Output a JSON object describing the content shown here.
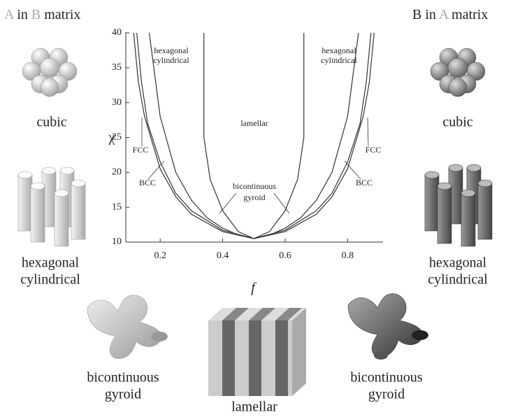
{
  "chart_data": {
    "type": "line",
    "x_label": "f",
    "y_label": "χ",
    "xlim": [
      0.1,
      0.9
    ],
    "xticks": [
      0.2,
      0.4,
      0.6,
      0.8
    ],
    "ylim": [
      10,
      40
    ],
    "yticks": [
      10,
      15,
      20,
      25,
      30,
      35,
      40
    ],
    "color": "#333333",
    "series": [
      {
        "x": [
          0.115,
          0.13,
          0.15,
          0.2,
          0.25,
          0.3,
          0.4,
          0.5,
          0.6,
          0.7,
          0.75,
          0.8,
          0.85,
          0.87,
          0.885
        ],
        "values": [
          40,
          33,
          28,
          20.5,
          16.5,
          14,
          11.5,
          10.5,
          11.5,
          14,
          16.5,
          20.5,
          28,
          33,
          40
        ]
      },
      {
        "x": [
          0.125,
          0.14,
          0.16,
          0.2,
          0.25,
          0.3,
          0.4,
          0.5,
          0.6,
          0.7,
          0.75,
          0.8,
          0.84,
          0.86,
          0.875
        ],
        "values": [
          40,
          33,
          27,
          21.5,
          17,
          14.5,
          11.7,
          10.5,
          11.7,
          14.5,
          17,
          21.5,
          27,
          33,
          40
        ]
      },
      {
        "x": [
          0.165,
          0.2,
          0.25,
          0.3,
          0.35,
          0.4,
          0.45,
          0.5,
          0.55,
          0.6,
          0.65,
          0.7,
          0.75,
          0.8,
          0.835
        ],
        "values": [
          40,
          28,
          20,
          16,
          13.5,
          12,
          11,
          10.5,
          11,
          12,
          13.5,
          16,
          20,
          28,
          40
        ]
      },
      {
        "x": [
          0.34,
          0.34,
          0.36,
          0.4,
          0.45,
          0.5,
          0.55,
          0.6,
          0.64,
          0.66,
          0.66
        ],
        "values": [
          40,
          25,
          19,
          14.5,
          11.5,
          10.5,
          11.5,
          14.5,
          19,
          25,
          40
        ]
      }
    ],
    "annotations": [
      "hexagonal",
      "cylindrical",
      "hexagonal",
      "cylindrical",
      "lamellar",
      "FCC",
      "BCC",
      "FCC",
      "BCC",
      "bicontinuous",
      "gyroid"
    ]
  },
  "left_panel": {
    "heading": [
      "A",
      "in",
      "B",
      "matrix"
    ],
    "cubic": "cubic",
    "hexagonal": [
      "hexagonal",
      "cylindrical"
    ],
    "gyroid": [
      "bicontinuous",
      "gyroid"
    ]
  },
  "right_panel": {
    "heading": [
      "B",
      "in",
      "A",
      "matrix"
    ],
    "cubic": "cubic",
    "hexagonal": [
      "hexagonal",
      "cylindrical"
    ],
    "gyroid": [
      "bicontinuous",
      "gyroid"
    ]
  },
  "lamellar": "lamellar"
}
